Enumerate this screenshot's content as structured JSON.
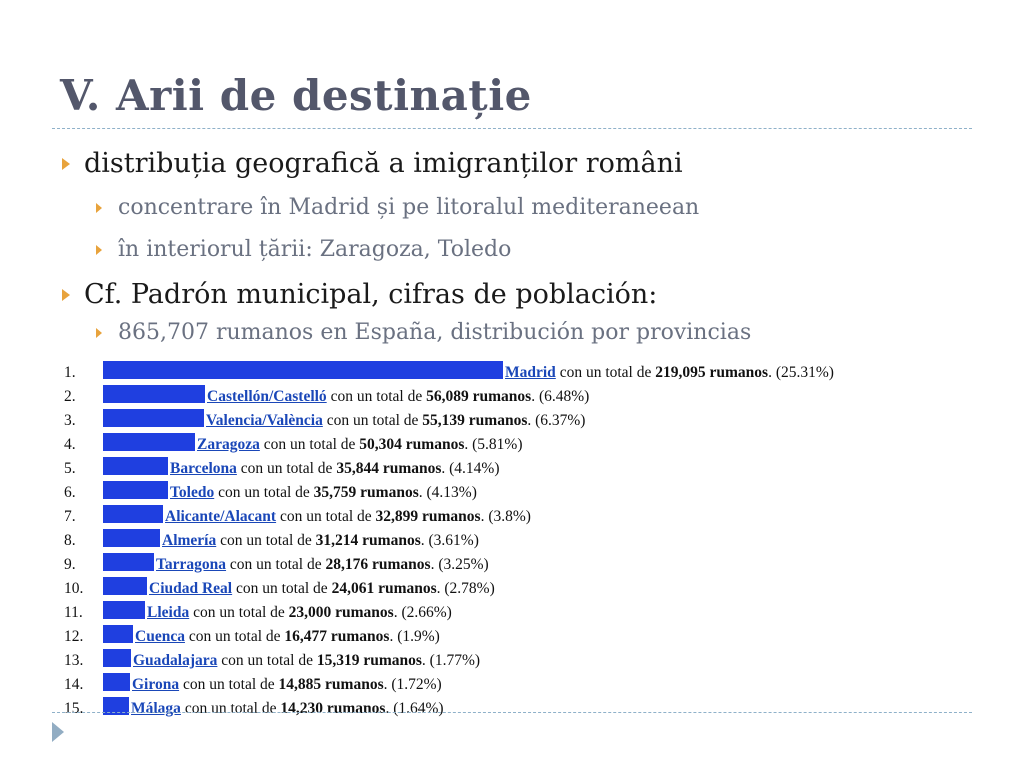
{
  "title": "V. Arii de destinație",
  "bullets": [
    {
      "level": 1,
      "text": "distribuția geografică a imigranților români"
    },
    {
      "level": 2,
      "text": "concentrare în Madrid și pe litoralul mediteraneean"
    },
    {
      "level": 2,
      "text": "în interiorul țării: Zaragoza, Toledo"
    },
    {
      "level": 1,
      "text": "Cf. Padrón municipal, cifras de población:"
    },
    {
      "level": 2,
      "text": "865,707 rumanos en España, distribución por provincias"
    }
  ],
  "row_template": {
    "middle": "con un total de",
    "unit": "rumanos"
  },
  "chart_data": {
    "type": "bar",
    "orientation": "horizontal",
    "categories": [
      "Madrid",
      "Castellón/Castelló",
      "Valencia/València",
      "Zaragoza",
      "Barcelona",
      "Toledo",
      "Alicante/Alacant",
      "Almería",
      "Tarragona",
      "Ciudad Real",
      "Lleida",
      "Cuenca",
      "Guadalajara",
      "Girona",
      "Málaga"
    ],
    "ranks": [
      "1.",
      "2.",
      "3.",
      "4.",
      "5.",
      "6.",
      "7.",
      "8.",
      "9.",
      "10.",
      "11.",
      "12.",
      "13.",
      "14.",
      "15."
    ],
    "values": [
      219095,
      56089,
      55139,
      50304,
      35844,
      35759,
      32899,
      31214,
      28176,
      24061,
      23000,
      16477,
      15319,
      14885,
      14230
    ],
    "value_labels": [
      "219,095",
      "56,089",
      "55,139",
      "50,304",
      "35,844",
      "35,759",
      "32,899",
      "31,214",
      "28,176",
      "24,061",
      "23,000",
      "16,477",
      "15,319",
      "14,885",
      "14,230"
    ],
    "percent_labels": [
      "(25.31%)",
      "(6.48%)",
      "(6.37%)",
      "(5.81%)",
      "(4.14%)",
      "(4.13%)",
      "(3.8%)",
      "(3.61%)",
      "(3.25%)",
      "(2.78%)",
      "(2.66%)",
      "(1.9%)",
      "(1.77%)",
      "(1.72%)",
      "(1.64%)"
    ],
    "bar_color": "#1f3fe0",
    "link_color": "#1a47b8"
  },
  "colors": {
    "title": "#53576b",
    "bullet_arrow": "#e8a33c",
    "divider": "#8fb1c9",
    "level2_text": "#6a7181"
  },
  "icons": {
    "bullet": "triangle-right-icon",
    "nav": "nav-arrow-icon"
  }
}
